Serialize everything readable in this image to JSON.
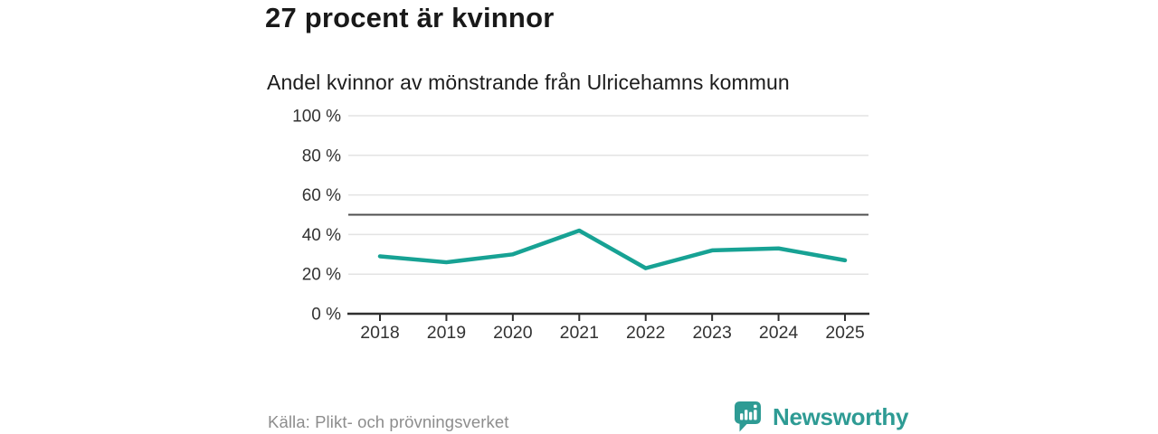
{
  "header": {
    "title": "27 procent är kvinnor"
  },
  "chart_data": {
    "type": "line",
    "title": "27 procent är kvinnor",
    "subtitle": "Andel kvinnor av mönstrande från Ulricehamns kommun",
    "categories": [
      "2018",
      "2019",
      "2020",
      "2021",
      "2022",
      "2023",
      "2024",
      "2025"
    ],
    "series": [
      {
        "name": "Andel kvinnor av mönstrande",
        "values": [
          29,
          26,
          30,
          42,
          23,
          32,
          33,
          27
        ]
      }
    ],
    "unit": "%",
    "ylim": [
      0,
      100
    ],
    "yticks": [
      0,
      20,
      40,
      60,
      80,
      100
    ],
    "ytick_labels": [
      "0 %",
      "20 %",
      "40 %",
      "60 %",
      "80 %",
      "100 %"
    ],
    "reference_line": 50,
    "grid": true,
    "legend": false
  },
  "footer": {
    "source": "Källa: Plikt- och prövningsverket",
    "brand": "Newsworthy"
  },
  "theme": {
    "line_color": "#17A294",
    "grid_color": "#E3E3E3",
    "reference_line_color": "#4F4F4F",
    "axis_color": "#2F2F2F",
    "axis_text_color": "#333333",
    "title_color": "#191919",
    "source_color": "#8D8D8D",
    "brand_color": "#2E9B94",
    "background_color": "#FFFFFF"
  }
}
